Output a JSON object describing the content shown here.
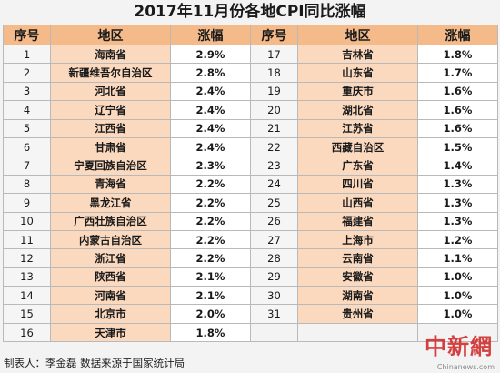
{
  "title": "2017年11月份各地CPI同比涨幅",
  "headers": {
    "num": "序号",
    "region": "地区",
    "rate": "涨幅"
  },
  "left_rows": [
    {
      "num": "1",
      "region": "海南省",
      "rate": "2.9%"
    },
    {
      "num": "2",
      "region": "新疆维吾尔自治区",
      "rate": "2.8%"
    },
    {
      "num": "3",
      "region": "河北省",
      "rate": "2.4%"
    },
    {
      "num": "4",
      "region": "辽宁省",
      "rate": "2.4%"
    },
    {
      "num": "5",
      "region": "江西省",
      "rate": "2.4%"
    },
    {
      "num": "6",
      "region": "甘肃省",
      "rate": "2.4%"
    },
    {
      "num": "7",
      "region": "宁夏回族自治区",
      "rate": "2.3%"
    },
    {
      "num": "8",
      "region": "青海省",
      "rate": "2.2%"
    },
    {
      "num": "9",
      "region": "黑龙江省",
      "rate": "2.2%"
    },
    {
      "num": "10",
      "region": "广西壮族自治区",
      "rate": "2.2%"
    },
    {
      "num": "11",
      "region": "内蒙古自治区",
      "rate": "2.2%"
    },
    {
      "num": "12",
      "region": "浙江省",
      "rate": "2.2%"
    },
    {
      "num": "13",
      "region": "陕西省",
      "rate": "2.1%"
    },
    {
      "num": "14",
      "region": "河南省",
      "rate": "2.1%"
    },
    {
      "num": "15",
      "region": "北京市",
      "rate": "2.0%"
    },
    {
      "num": "16",
      "region": "天津市",
      "rate": "1.8%"
    }
  ],
  "right_rows": [
    {
      "num": "17",
      "region": "吉林省",
      "rate": "1.8%"
    },
    {
      "num": "18",
      "region": "山东省",
      "rate": "1.7%"
    },
    {
      "num": "19",
      "region": "重庆市",
      "rate": "1.6%"
    },
    {
      "num": "20",
      "region": "湖北省",
      "rate": "1.6%"
    },
    {
      "num": "21",
      "region": "江苏省",
      "rate": "1.6%"
    },
    {
      "num": "22",
      "region": "西藏自治区",
      "rate": "1.5%"
    },
    {
      "num": "23",
      "region": "广东省",
      "rate": "1.4%"
    },
    {
      "num": "24",
      "region": "四川省",
      "rate": "1.3%"
    },
    {
      "num": "25",
      "region": "山西省",
      "rate": "1.3%"
    },
    {
      "num": "26",
      "region": "福建省",
      "rate": "1.3%"
    },
    {
      "num": "27",
      "region": "上海市",
      "rate": "1.2%"
    },
    {
      "num": "28",
      "region": "云南省",
      "rate": "1.1%"
    },
    {
      "num": "29",
      "region": "安徽省",
      "rate": "1.0%"
    },
    {
      "num": "30",
      "region": "湖南省",
      "rate": "1.0%"
    },
    {
      "num": "31",
      "region": "贵州省",
      "rate": "1.0%"
    }
  ],
  "footer": "制表人：李金磊  数据来源于国家统计局",
  "watermark": {
    "logo_text": "中新網",
    "url": "Chinanews.com"
  },
  "colors": {
    "header_bg": "#f4ba8a",
    "region_bg": "#fbd9bf",
    "rate_bg": "#ffffff",
    "page_bg": "#f3f3f3"
  }
}
